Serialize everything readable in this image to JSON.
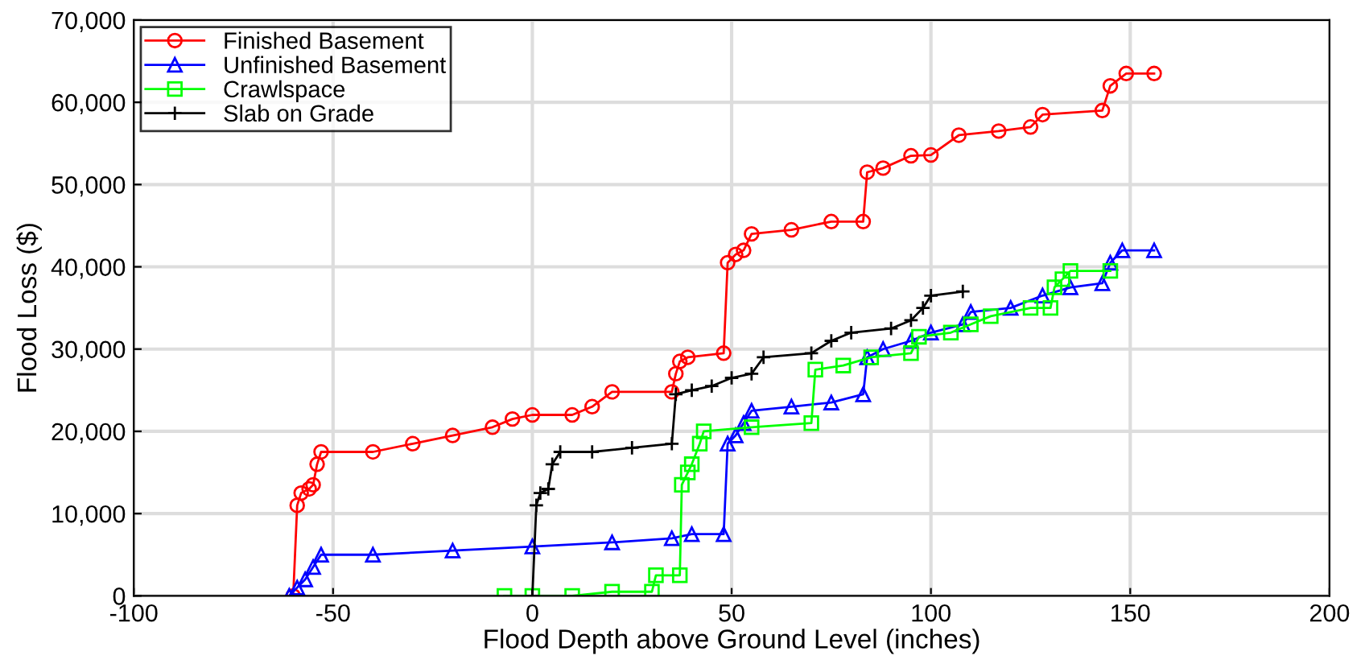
{
  "chart_data": {
    "type": "line",
    "xlabel": "Flood Depth above Ground Level (inches)",
    "ylabel": "Flood Loss ($)",
    "xlim": [
      -100,
      200
    ],
    "xticks": [
      -100,
      -50,
      0,
      50,
      100,
      150,
      200
    ],
    "ylim": [
      0,
      70000
    ],
    "yticks": [
      0,
      {
        "value": 10000,
        "label": "10,000"
      },
      {
        "value": 20000,
        "label": "20,000"
      },
      {
        "value": 30000,
        "label": "30,000"
      },
      {
        "value": 40000,
        "label": "40,000"
      },
      {
        "value": 50000,
        "label": "50,000"
      },
      {
        "value": 60000,
        "label": "60,000"
      },
      {
        "value": 70000,
        "label": "70,000"
      }
    ],
    "grid": true,
    "legend": "top left",
    "line_style": "solid",
    "series": [
      {
        "name": "Finished Basement",
        "color": "#ff0000",
        "marker": "circle",
        "x": [
          -60,
          -59,
          -58,
          -56,
          -55,
          -54,
          -53,
          -40,
          -30,
          -20,
          -10,
          -5,
          0,
          10,
          15,
          20,
          35,
          36,
          37,
          39,
          48,
          49,
          51,
          53,
          55,
          65,
          75,
          83,
          84,
          88,
          95,
          100,
          107,
          117,
          125,
          128,
          143,
          145,
          149,
          156
        ],
        "values": [
          0,
          11000,
          12500,
          13000,
          13500,
          16000,
          17500,
          17500,
          18500,
          19500,
          20500,
          21500,
          22000,
          22000,
          23000,
          24800,
          24800,
          27000,
          28500,
          29000,
          29500,
          40500,
          41500,
          42000,
          44000,
          44500,
          45500,
          45500,
          51500,
          52000,
          53500,
          53600,
          56000,
          56500,
          57000,
          58500,
          59000,
          62000,
          63500,
          63500
        ]
      },
      {
        "name": "Unfinished Basement",
        "color": "#0000ff",
        "marker": "triangle",
        "x": [
          -61,
          -59,
          -57,
          -55,
          -53,
          -40,
          -20,
          0,
          20,
          35,
          40,
          48,
          49,
          51,
          53,
          55,
          65,
          75,
          83,
          84,
          88,
          95,
          100,
          108,
          110,
          120,
          128,
          135,
          143,
          145,
          148,
          156
        ],
        "values": [
          0,
          1000,
          2000,
          3500,
          5000,
          5000,
          5500,
          6000,
          6500,
          7000,
          7500,
          7500,
          18500,
          19500,
          21000,
          22500,
          23000,
          23500,
          24500,
          29000,
          30000,
          31000,
          32000,
          33000,
          34500,
          35000,
          36500,
          37500,
          38000,
          40500,
          42000,
          42000
        ]
      },
      {
        "name": "Crawlspace",
        "color": "#00ff00",
        "marker": "square",
        "x": [
          -7,
          0,
          10,
          20,
          30,
          31,
          37,
          37.5,
          39,
          40,
          42,
          43,
          55,
          70,
          71,
          78,
          85,
          95,
          97,
          105,
          110,
          115,
          125,
          130,
          131,
          133,
          135,
          145
        ],
        "values": [
          0,
          0,
          0,
          500,
          500,
          2500,
          2500,
          13500,
          15000,
          16000,
          18500,
          20000,
          20500,
          21000,
          27500,
          28000,
          29000,
          29500,
          31500,
          32000,
          33000,
          34000,
          35000,
          35000,
          37500,
          38500,
          39500,
          39500
        ]
      },
      {
        "name": "Slab on Grade",
        "color": "#000000",
        "marker": "cross",
        "x": [
          0,
          1,
          2,
          4,
          5,
          7,
          15,
          25,
          35,
          36,
          40,
          45,
          50,
          55,
          58,
          70,
          75,
          80,
          90,
          95,
          98,
          100,
          108
        ],
        "values": [
          0,
          11000,
          12500,
          13000,
          16000,
          17500,
          17500,
          18000,
          18500,
          24500,
          25000,
          25500,
          26500,
          27000,
          29000,
          29500,
          31000,
          32000,
          32500,
          33500,
          35000,
          36500,
          37000
        ]
      }
    ]
  }
}
